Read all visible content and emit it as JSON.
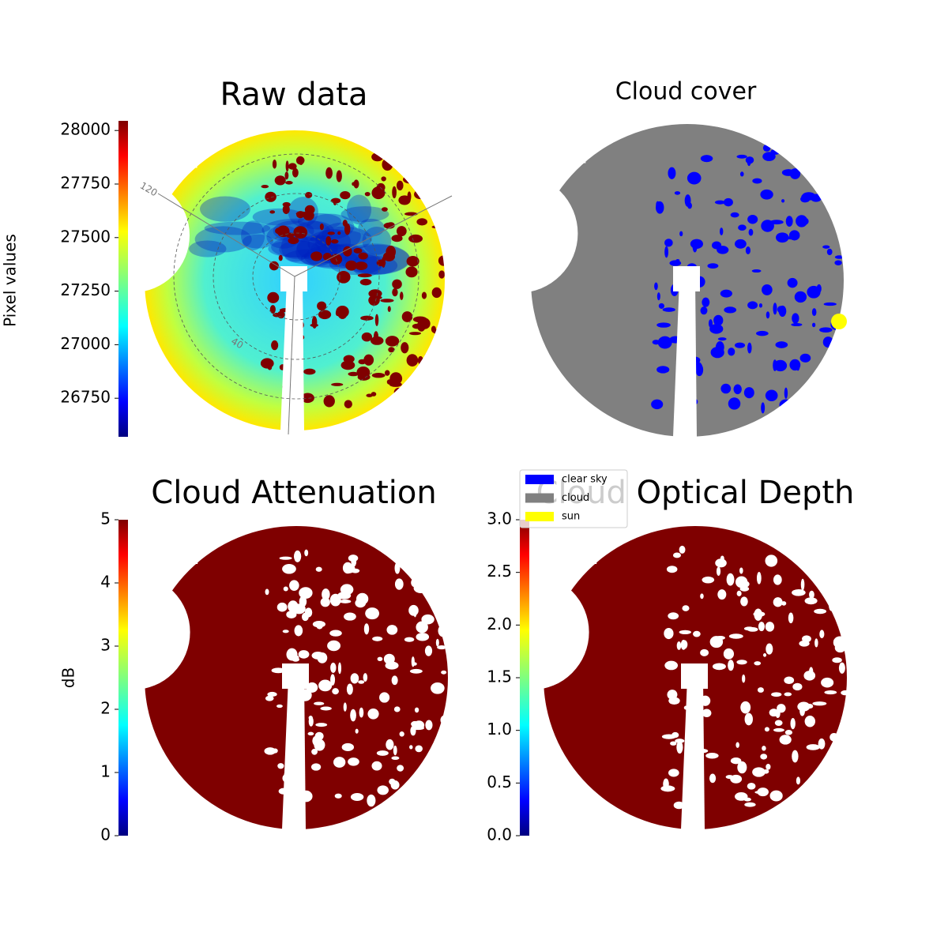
{
  "chart_data": [
    {
      "type": "image",
      "title": "Raw data",
      "ylabel": "Pixel values",
      "colormap": "jet",
      "ylim": [
        26570,
        28045
      ],
      "yticks": [
        26750,
        27000,
        27250,
        27500,
        27750,
        28000
      ],
      "annotations": [
        "120",
        "40"
      ]
    },
    {
      "type": "image",
      "title": "Cloud cover",
      "legend": [
        {
          "label": "clear sky",
          "color": "#0000ff"
        },
        {
          "label": "cloud",
          "color": "#808080"
        },
        {
          "label": "sun",
          "color": "#ffff00"
        }
      ]
    },
    {
      "type": "image",
      "title": "Cloud Attenuation",
      "ylabel": "dB",
      "colormap": "jet",
      "ylim": [
        0,
        5
      ],
      "yticks": [
        0,
        1,
        2,
        3,
        4,
        5
      ]
    },
    {
      "type": "image",
      "title": "Cloud Optical Depth",
      "colormap": "jet",
      "ylim": [
        0,
        3
      ],
      "yticks": [
        {
          "value": 0,
          "label": "0.0"
        },
        0.5,
        {
          "value": 1,
          "label": "1.0"
        },
        1.5,
        {
          "value": 2,
          "label": "2.0"
        },
        2.5,
        {
          "value": 3,
          "label": "3.0"
        }
      ]
    }
  ]
}
